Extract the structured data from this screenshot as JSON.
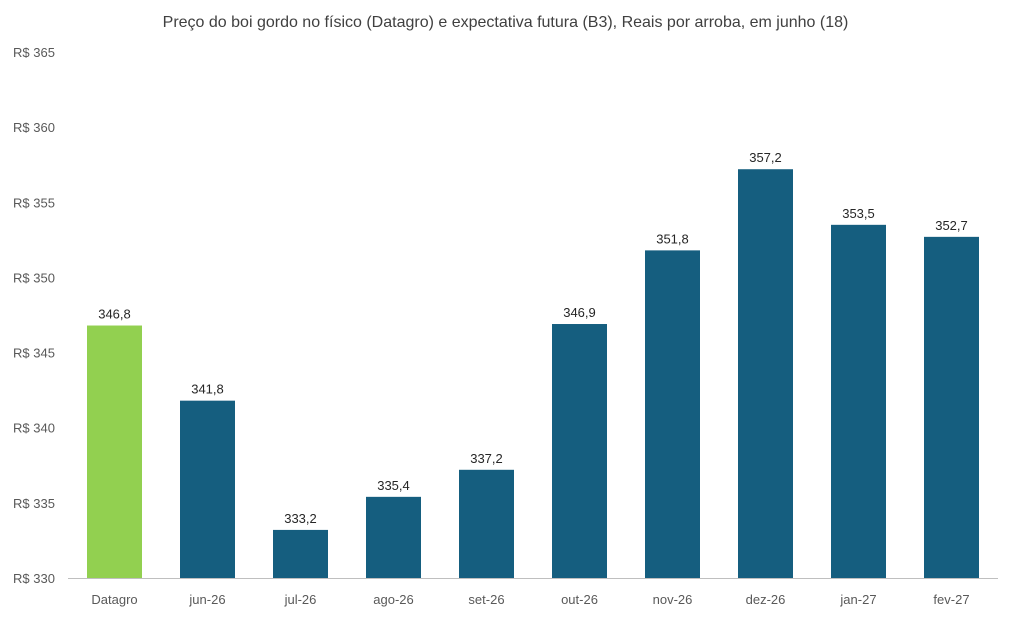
{
  "chart_data": {
    "type": "bar",
    "title": "Preço do boi gordo no físico (Datagro)  e expectativa futura (B3), Reais por arroba, em junho (18)",
    "categories": [
      "Datagro",
      "jun-26",
      "jul-26",
      "ago-26",
      "set-26",
      "out-26",
      "nov-26",
      "dez-26",
      "jan-27",
      "fev-27"
    ],
    "values": [
      346.8,
      341.8,
      333.2,
      335.4,
      337.2,
      346.9,
      351.8,
      357.2,
      353.5,
      352.7
    ],
    "value_labels": [
      "346,8",
      "341,8",
      "333,2",
      "335,4",
      "337,2",
      "346,9",
      "351,8",
      "357,2",
      "353,5",
      "352,7"
    ],
    "colors": [
      "#92d050",
      "#155e7f",
      "#155e7f",
      "#155e7f",
      "#155e7f",
      "#155e7f",
      "#155e7f",
      "#155e7f",
      "#155e7f",
      "#155e7f"
    ],
    "ylim": [
      330,
      365
    ],
    "yticks": [
      330,
      335,
      340,
      345,
      350,
      355,
      360,
      365
    ],
    "ytick_labels": [
      "R$ 330",
      "R$ 335",
      "R$ 340",
      "R$ 345",
      "R$ 350",
      "R$ 355",
      "R$ 360",
      "R$ 365"
    ],
    "grid": false,
    "xlabel": "",
    "ylabel": ""
  }
}
